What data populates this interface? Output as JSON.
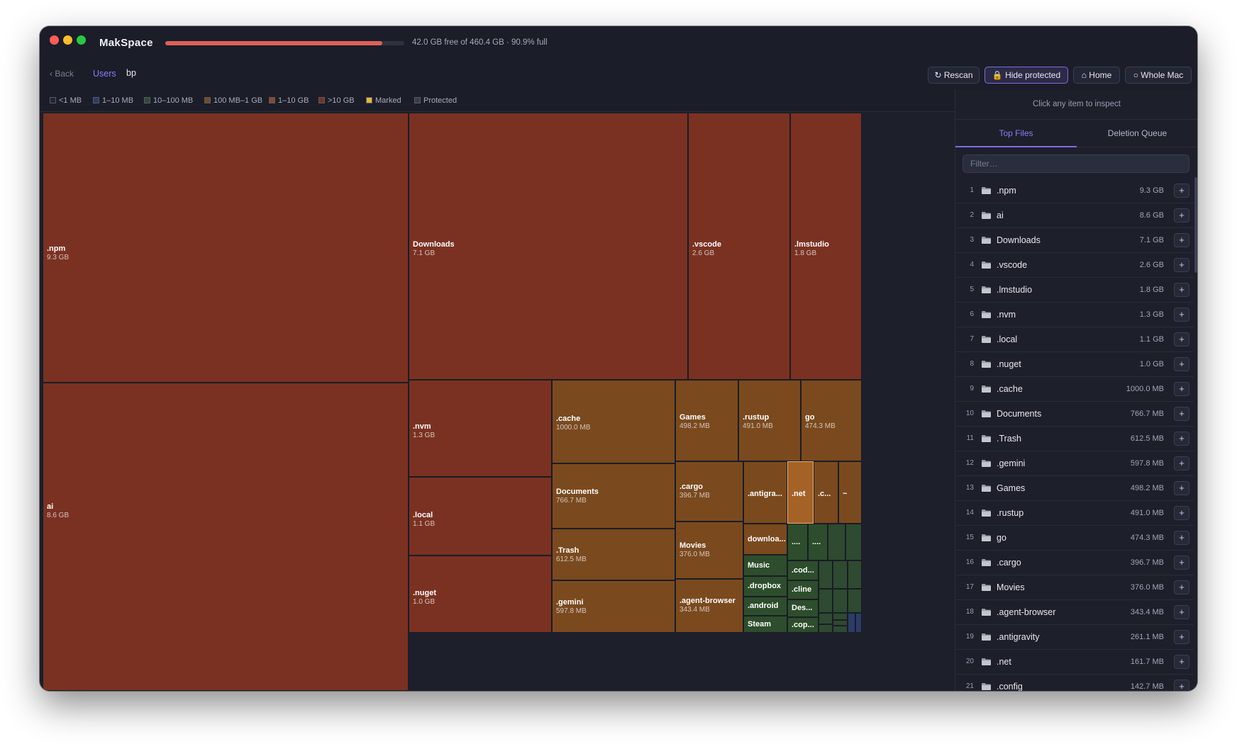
{
  "window": {
    "app_title": "MakSpace",
    "disk": {
      "fill_fraction": 0.909,
      "text": "42.0 GB free of 460.4 GB · 90.9% full"
    }
  },
  "toolbar": {
    "back_label": "‹ Back",
    "breadcrumb": [
      "Users",
      "bp"
    ],
    "rescan_label": "↻ Rescan",
    "hide_protected_label": "🔒 Hide protected",
    "home_label": "⌂ Home",
    "whole_mac_label": "○ Whole Mac"
  },
  "legend": [
    {
      "label": "<1 MB",
      "color": "#22242f"
    },
    {
      "label": "1–10 MB",
      "color": "#2c3c66"
    },
    {
      "label": "10–100 MB",
      "color": "#2d4d2c"
    },
    {
      "label": "100 MB–1 GB",
      "color": "#7a4a1e"
    },
    {
      "label": "1–10 GB",
      "color": "#8a4a24"
    },
    {
      "label": ">10 GB",
      "color": "#7a3122"
    },
    {
      "label": "Marked",
      "color": "#e8b63a"
    },
    {
      "label": "Protected",
      "color": "#3a3d4c"
    }
  ],
  "treemap": [
    {
      "name": ".npm",
      "size": "9.3 GB"
    },
    {
      "name": "ai",
      "size": "8.6 GB"
    },
    {
      "name": "Downloads",
      "size": "7.1 GB"
    },
    {
      "name": ".vscode",
      "size": "2.6 GB"
    },
    {
      "name": ".lmstudio",
      "size": "1.8 GB"
    },
    {
      "name": ".nvm",
      "size": "1.3 GB"
    },
    {
      "name": ".local",
      "size": "1.1 GB"
    },
    {
      "name": ".nuget",
      "size": "1.0 GB"
    },
    {
      "name": ".cache",
      "size": "1000.0 MB"
    },
    {
      "name": "Documents",
      "size": "766.7 MB"
    },
    {
      "name": ".Trash",
      "size": "612.5 MB"
    },
    {
      "name": ".gemini",
      "size": "597.8 MB"
    },
    {
      "name": "Games",
      "size": "498.2 MB"
    },
    {
      "name": ".rustup",
      "size": "491.0 MB"
    },
    {
      "name": "go",
      "size": "474.3 MB"
    },
    {
      "name": ".cargo",
      "size": "396.7 MB"
    },
    {
      "name": "Movies",
      "size": "376.0 MB"
    },
    {
      "name": ".agent-browser",
      "size": "343.4 MB"
    },
    {
      "name": ".antigra...",
      "size": ""
    },
    {
      "name": ".net",
      "size": ""
    },
    {
      "name": ".c...",
      "size": ""
    },
    {
      "name": "~",
      "size": ""
    },
    {
      "name": "downloa...",
      "size": ""
    },
    {
      "name": "Music",
      "size": ""
    },
    {
      "name": ".dropbox",
      "size": ""
    },
    {
      "name": ".android",
      "size": ""
    },
    {
      "name": "Steam",
      "size": ""
    },
    {
      "name": "....",
      "size": ""
    },
    {
      "name": "....",
      "size": ""
    },
    {
      "name": ".cod...",
      "size": ""
    },
    {
      "name": ".cline",
      "size": ""
    },
    {
      "name": "Des...",
      "size": ""
    },
    {
      "name": ".cop...",
      "size": ""
    }
  ],
  "sidebar": {
    "inspect_hint": "Click any item to inspect",
    "tabs": [
      "Top Files",
      "Deletion Queue"
    ],
    "filter_placeholder": "Filter…",
    "add_label": "+",
    "files": [
      {
        "idx": "1",
        "name": ".npm",
        "size": "9.3 GB"
      },
      {
        "idx": "2",
        "name": "ai",
        "size": "8.6 GB"
      },
      {
        "idx": "3",
        "name": "Downloads",
        "size": "7.1 GB"
      },
      {
        "idx": "4",
        "name": ".vscode",
        "size": "2.6 GB"
      },
      {
        "idx": "5",
        "name": ".lmstudio",
        "size": "1.8 GB"
      },
      {
        "idx": "6",
        "name": ".nvm",
        "size": "1.3 GB"
      },
      {
        "idx": "7",
        "name": ".local",
        "size": "1.1 GB"
      },
      {
        "idx": "8",
        "name": ".nuget",
        "size": "1.0 GB"
      },
      {
        "idx": "9",
        "name": ".cache",
        "size": "1000.0 MB"
      },
      {
        "idx": "10",
        "name": "Documents",
        "size": "766.7 MB"
      },
      {
        "idx": "11",
        "name": ".Trash",
        "size": "612.5 MB"
      },
      {
        "idx": "12",
        "name": ".gemini",
        "size": "597.8 MB"
      },
      {
        "idx": "13",
        "name": "Games",
        "size": "498.2 MB"
      },
      {
        "idx": "14",
        "name": ".rustup",
        "size": "491.0 MB"
      },
      {
        "idx": "15",
        "name": "go",
        "size": "474.3 MB"
      },
      {
        "idx": "16",
        "name": ".cargo",
        "size": "396.7 MB"
      },
      {
        "idx": "17",
        "name": "Movies",
        "size": "376.0 MB"
      },
      {
        "idx": "18",
        "name": ".agent-browser",
        "size": "343.4 MB"
      },
      {
        "idx": "19",
        "name": ".antigravity",
        "size": "261.1 MB"
      },
      {
        "idx": "20",
        "name": ".net",
        "size": "161.7 MB"
      },
      {
        "idx": "21",
        "name": ".config",
        "size": "142.7 MB"
      }
    ]
  }
}
